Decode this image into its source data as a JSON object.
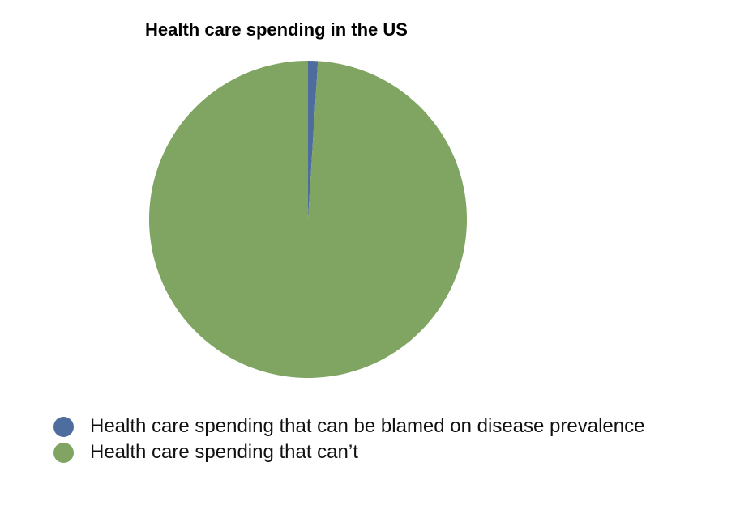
{
  "chart_data": {
    "type": "pie",
    "title": "Health care spending in the US",
    "slices": [
      {
        "label": "Health care spending that can be blamed on disease prevalence",
        "value": 1,
        "color": "#4e6c9e"
      },
      {
        "label": "Health care spending that can't",
        "value": 99,
        "color": "#80a461"
      }
    ],
    "legend_position": "bottom-left"
  },
  "legend": [
    "Health care spending that can be blamed on disease prevalence",
    "Health care spending that can’t"
  ]
}
